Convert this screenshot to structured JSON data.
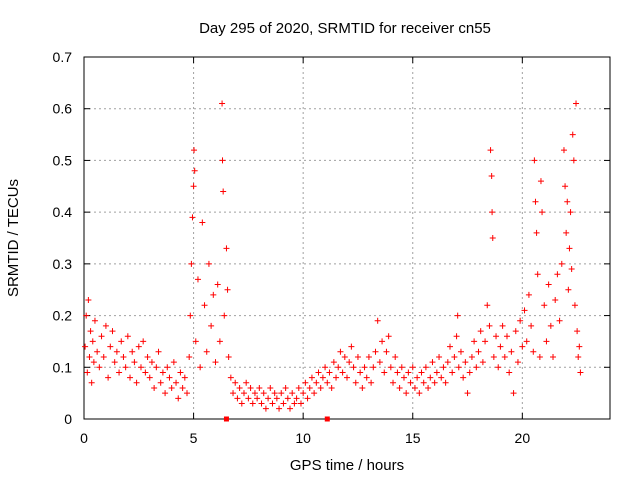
{
  "chart_data": {
    "type": "scatter",
    "title": "Day 295 of 2020, SRMTID for receiver cn55",
    "xlabel": "GPS time / hours",
    "ylabel": "SRMTID / TECUs",
    "xlim": [
      0,
      24
    ],
    "ylim": [
      0,
      0.7
    ],
    "xticks": [
      0,
      5,
      10,
      15,
      20
    ],
    "yticks": [
      0,
      0.1,
      0.2,
      0.3,
      0.4,
      0.5,
      0.6,
      0.7
    ],
    "xtick_labels": [
      "0",
      "5",
      "10",
      "15",
      "20"
    ],
    "ytick_labels": [
      "0",
      "0.1",
      "0.2",
      "0.3",
      "0.4",
      "0.5",
      "0.6",
      "0.7"
    ],
    "grid": true,
    "marker": "plus",
    "color": "#ff0000",
    "series": [
      {
        "name": "SRMTID",
        "points": [
          [
            0.05,
            0.14
          ],
          [
            0.1,
            0.2
          ],
          [
            0.15,
            0.09
          ],
          [
            0.2,
            0.23
          ],
          [
            0.25,
            0.12
          ],
          [
            0.3,
            0.17
          ],
          [
            0.35,
            0.07
          ],
          [
            0.4,
            0.15
          ],
          [
            0.45,
            0.11
          ],
          [
            0.5,
            0.19
          ],
          [
            0.6,
            0.13
          ],
          [
            0.7,
            0.1
          ],
          [
            0.8,
            0.16
          ],
          [
            0.9,
            0.12
          ],
          [
            1.0,
            0.18
          ],
          [
            1.1,
            0.08
          ],
          [
            1.2,
            0.14
          ],
          [
            1.3,
            0.17
          ],
          [
            1.4,
            0.11
          ],
          [
            1.5,
            0.13
          ],
          [
            1.6,
            0.09
          ],
          [
            1.7,
            0.15
          ],
          [
            1.8,
            0.12
          ],
          [
            1.9,
            0.1
          ],
          [
            2.0,
            0.16
          ],
          [
            2.1,
            0.08
          ],
          [
            2.2,
            0.13
          ],
          [
            2.3,
            0.11
          ],
          [
            2.4,
            0.07
          ],
          [
            2.5,
            0.14
          ],
          [
            2.6,
            0.1
          ],
          [
            2.7,
            0.15
          ],
          [
            2.8,
            0.09
          ],
          [
            2.9,
            0.12
          ],
          [
            3.0,
            0.08
          ],
          [
            3.1,
            0.11
          ],
          [
            3.2,
            0.06
          ],
          [
            3.3,
            0.1
          ],
          [
            3.4,
            0.13
          ],
          [
            3.5,
            0.07
          ],
          [
            3.6,
            0.09
          ],
          [
            3.7,
            0.05
          ],
          [
            3.8,
            0.1
          ],
          [
            3.9,
            0.08
          ],
          [
            4.0,
            0.06
          ],
          [
            4.1,
            0.11
          ],
          [
            4.2,
            0.07
          ],
          [
            4.3,
            0.04
          ],
          [
            4.4,
            0.09
          ],
          [
            4.5,
            0.06
          ],
          [
            4.6,
            0.08
          ],
          [
            4.7,
            0.05
          ],
          [
            4.8,
            0.12
          ],
          [
            4.85,
            0.2
          ],
          [
            4.9,
            0.3
          ],
          [
            4.95,
            0.39
          ],
          [
            5.0,
            0.45
          ],
          [
            5.02,
            0.52
          ],
          [
            5.05,
            0.48
          ],
          [
            5.1,
            0.15
          ],
          [
            5.2,
            0.27
          ],
          [
            5.3,
            0.1
          ],
          [
            5.4,
            0.38
          ],
          [
            5.5,
            0.22
          ],
          [
            5.6,
            0.13
          ],
          [
            5.7,
            0.3
          ],
          [
            5.8,
            0.18
          ],
          [
            5.9,
            0.24
          ],
          [
            6.0,
            0.11
          ],
          [
            6.1,
            0.26
          ],
          [
            6.2,
            0.15
          ],
          [
            6.3,
            0.61
          ],
          [
            6.32,
            0.5
          ],
          [
            6.35,
            0.44
          ],
          [
            6.4,
            0.2
          ],
          [
            6.5,
            0.33
          ],
          [
            6.55,
            0.25
          ],
          [
            6.6,
            0.12
          ],
          [
            6.7,
            0.08
          ],
          [
            6.8,
            0.05
          ],
          [
            6.9,
            0.07
          ],
          [
            7.0,
            0.04
          ],
          [
            7.1,
            0.06
          ],
          [
            7.2,
            0.03
          ],
          [
            7.3,
            0.05
          ],
          [
            7.4,
            0.07
          ],
          [
            7.5,
            0.04
          ],
          [
            7.6,
            0.06
          ],
          [
            7.7,
            0.03
          ],
          [
            7.8,
            0.05
          ],
          [
            7.9,
            0.04
          ],
          [
            8.0,
            0.06
          ],
          [
            8.1,
            0.03
          ],
          [
            8.2,
            0.05
          ],
          [
            8.3,
            0.02
          ],
          [
            8.4,
            0.04
          ],
          [
            8.5,
            0.06
          ],
          [
            8.6,
            0.03
          ],
          [
            8.7,
            0.05
          ],
          [
            8.8,
            0.04
          ],
          [
            8.9,
            0.02
          ],
          [
            9.0,
            0.05
          ],
          [
            9.1,
            0.03
          ],
          [
            9.2,
            0.06
          ],
          [
            9.3,
            0.04
          ],
          [
            9.4,
            0.02
          ],
          [
            9.5,
            0.05
          ],
          [
            9.6,
            0.03
          ],
          [
            9.7,
            0.04
          ],
          [
            9.8,
            0.06
          ],
          [
            9.9,
            0.03
          ],
          [
            10.0,
            0.05
          ],
          [
            10.1,
            0.07
          ],
          [
            10.2,
            0.04
          ],
          [
            10.3,
            0.06
          ],
          [
            10.4,
            0.08
          ],
          [
            10.5,
            0.05
          ],
          [
            10.6,
            0.07
          ],
          [
            10.7,
            0.09
          ],
          [
            10.8,
            0.06
          ],
          [
            10.9,
            0.08
          ],
          [
            11.0,
            0.1
          ],
          [
            11.1,
            0.07
          ],
          [
            11.2,
            0.09
          ],
          [
            11.3,
            0.06
          ],
          [
            11.4,
            0.11
          ],
          [
            11.5,
            0.08
          ],
          [
            11.6,
            0.1
          ],
          [
            11.7,
            0.13
          ],
          [
            11.8,
            0.09
          ],
          [
            11.9,
            0.12
          ],
          [
            12.0,
            0.08
          ],
          [
            12.1,
            0.11
          ],
          [
            12.2,
            0.14
          ],
          [
            12.3,
            0.1
          ],
          [
            12.4,
            0.07
          ],
          [
            12.5,
            0.12
          ],
          [
            12.6,
            0.09
          ],
          [
            12.7,
            0.06
          ],
          [
            12.8,
            0.1
          ],
          [
            12.9,
            0.08
          ],
          [
            13.0,
            0.12
          ],
          [
            13.1,
            0.07
          ],
          [
            13.2,
            0.1
          ],
          [
            13.3,
            0.13
          ],
          [
            13.4,
            0.19
          ],
          [
            13.5,
            0.11
          ],
          [
            13.6,
            0.15
          ],
          [
            13.7,
            0.09
          ],
          [
            13.8,
            0.13
          ],
          [
            13.9,
            0.16
          ],
          [
            14.0,
            0.1
          ],
          [
            14.1,
            0.07
          ],
          [
            14.2,
            0.12
          ],
          [
            14.3,
            0.09
          ],
          [
            14.4,
            0.06
          ],
          [
            14.5,
            0.1
          ],
          [
            14.6,
            0.08
          ],
          [
            14.7,
            0.05
          ],
          [
            14.8,
            0.09
          ],
          [
            14.9,
            0.07
          ],
          [
            15.0,
            0.1
          ],
          [
            15.1,
            0.06
          ],
          [
            15.2,
            0.08
          ],
          [
            15.3,
            0.05
          ],
          [
            15.4,
            0.09
          ],
          [
            15.5,
            0.07
          ],
          [
            15.6,
            0.1
          ],
          [
            15.7,
            0.06
          ],
          [
            15.8,
            0.08
          ],
          [
            15.9,
            0.11
          ],
          [
            16.0,
            0.07
          ],
          [
            16.1,
            0.09
          ],
          [
            16.2,
            0.12
          ],
          [
            16.3,
            0.08
          ],
          [
            16.4,
            0.1
          ],
          [
            16.5,
            0.07
          ],
          [
            16.6,
            0.11
          ],
          [
            16.7,
            0.14
          ],
          [
            16.8,
            0.09
          ],
          [
            16.9,
            0.12
          ],
          [
            17.0,
            0.16
          ],
          [
            17.05,
            0.2
          ],
          [
            17.1,
            0.1
          ],
          [
            17.2,
            0.13
          ],
          [
            17.3,
            0.08
          ],
          [
            17.4,
            0.11
          ],
          [
            17.5,
            0.05
          ],
          [
            17.6,
            0.09
          ],
          [
            17.7,
            0.12
          ],
          [
            17.8,
            0.15
          ],
          [
            17.9,
            0.1
          ],
          [
            18.0,
            0.13
          ],
          [
            18.1,
            0.17
          ],
          [
            18.2,
            0.11
          ],
          [
            18.3,
            0.15
          ],
          [
            18.4,
            0.22
          ],
          [
            18.5,
            0.18
          ],
          [
            18.55,
            0.52
          ],
          [
            18.6,
            0.47
          ],
          [
            18.62,
            0.4
          ],
          [
            18.65,
            0.35
          ],
          [
            18.7,
            0.12
          ],
          [
            18.8,
            0.16
          ],
          [
            18.9,
            0.1
          ],
          [
            19.0,
            0.14
          ],
          [
            19.1,
            0.18
          ],
          [
            19.2,
            0.12
          ],
          [
            19.3,
            0.16
          ],
          [
            19.4,
            0.09
          ],
          [
            19.5,
            0.13
          ],
          [
            19.6,
            0.05
          ],
          [
            19.7,
            0.17
          ],
          [
            19.8,
            0.11
          ],
          [
            19.9,
            0.19
          ],
          [
            20.0,
            0.14
          ],
          [
            20.1,
            0.21
          ],
          [
            20.2,
            0.15
          ],
          [
            20.3,
            0.24
          ],
          [
            20.4,
            0.18
          ],
          [
            20.5,
            0.13
          ],
          [
            20.55,
            0.5
          ],
          [
            20.6,
            0.42
          ],
          [
            20.65,
            0.36
          ],
          [
            20.7,
            0.28
          ],
          [
            20.8,
            0.12
          ],
          [
            20.85,
            0.46
          ],
          [
            20.9,
            0.4
          ],
          [
            21.0,
            0.22
          ],
          [
            21.1,
            0.15
          ],
          [
            21.2,
            0.26
          ],
          [
            21.3,
            0.18
          ],
          [
            21.4,
            0.12
          ],
          [
            21.5,
            0.23
          ],
          [
            21.6,
            0.28
          ],
          [
            21.7,
            0.19
          ],
          [
            21.8,
            0.3
          ],
          [
            21.9,
            0.52
          ],
          [
            21.95,
            0.45
          ],
          [
            22.0,
            0.36
          ],
          [
            22.05,
            0.42
          ],
          [
            22.1,
            0.25
          ],
          [
            22.15,
            0.33
          ],
          [
            22.2,
            0.4
          ],
          [
            22.25,
            0.29
          ],
          [
            22.3,
            0.55
          ],
          [
            22.35,
            0.5
          ],
          [
            22.4,
            0.22
          ],
          [
            22.45,
            0.61
          ],
          [
            22.5,
            0.17
          ],
          [
            22.55,
            0.12
          ],
          [
            22.6,
            0.14
          ],
          [
            22.65,
            0.09
          ]
        ]
      }
    ],
    "highlight_marks": [
      {
        "x": 6.5,
        "y": 0
      },
      {
        "x": 11.1,
        "y": 0
      }
    ]
  }
}
